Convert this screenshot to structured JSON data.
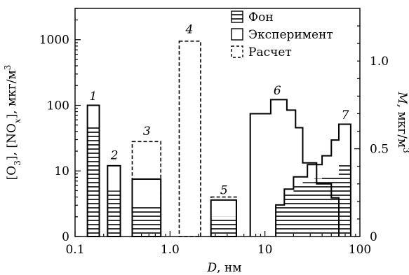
{
  "chart_data": {
    "type": "bar",
    "x_axis": {
      "label": "D, нм",
      "scale": "log",
      "range": [
        0.1,
        100
      ],
      "ticks": [
        {
          "value": 0.1,
          "label": "0.1"
        },
        {
          "value": 1,
          "label": "1.0"
        },
        {
          "value": 10,
          "label": "10"
        },
        {
          "value": 100,
          "label": "100"
        }
      ]
    },
    "y_left": {
      "label": "[O3], [NOx], мкг/м3",
      "label_parts": {
        "pre": "[O",
        "sub1": "3",
        "mid": "], [NO",
        "sub2": "x",
        "post": "], мкг/м",
        "sup": "3"
      },
      "scale": "log",
      "range": [
        1,
        3000
      ],
      "ticks": [
        {
          "value": 1,
          "label": "0"
        },
        {
          "value": 10,
          "label": "10"
        },
        {
          "value": 100,
          "label": "100"
        },
        {
          "value": 1000,
          "label": "1000"
        }
      ]
    },
    "y_right": {
      "label": "M, мкг/м3",
      "label_parts": {
        "var": "M",
        "unit": ", мкг/м",
        "sup": "3"
      },
      "scale": "linear",
      "range": [
        0,
        1.3
      ],
      "ticks": [
        {
          "value": 0,
          "label": "0"
        },
        {
          "value": 0.5,
          "label": "0.5"
        },
        {
          "value": 1.0,
          "label": "1.0"
        }
      ]
    },
    "legend": {
      "position": "top-right",
      "entries": [
        {
          "key": "background",
          "label": "Фон"
        },
        {
          "key": "experiment",
          "label": "Эксперимент"
        },
        {
          "key": "calculation",
          "label": "Расчет"
        }
      ]
    },
    "series": [
      {
        "label": "1",
        "axis": "left",
        "x_range": [
          0.135,
          0.18
        ],
        "experiment": 100,
        "background": 50
      },
      {
        "label": "2",
        "axis": "left",
        "x_range": [
          0.22,
          0.3
        ],
        "experiment": 12,
        "background": 5
      },
      {
        "label": "3",
        "axis": "left",
        "x_range": [
          0.4,
          0.8
        ],
        "experiment": 7.5,
        "background": 3,
        "calculation": 28
      },
      {
        "label": "4",
        "axis": "left",
        "x_range": [
          1.25,
          2.1
        ],
        "calculation": 950
      },
      {
        "label": "5",
        "axis": "left",
        "x_range": [
          2.7,
          5
        ],
        "experiment": 3.6,
        "background": 2,
        "calculation": 4
      },
      {
        "label": "6",
        "axis": "right",
        "experiment_steps": [
          [
            7,
            0.7
          ],
          [
            11.5,
            0.78
          ],
          [
            17,
            0.72
          ],
          [
            21,
            0.62
          ],
          [
            25,
            0.42
          ],
          [
            35,
            0.3
          ],
          [
            50,
            0.22
          ],
          [
            60,
            0.22
          ]
        ],
        "experiment_steps_end": 60,
        "background_steps": [
          [
            13,
            0.18
          ],
          [
            16,
            0.24
          ],
          [
            20,
            0.3
          ],
          [
            25,
            0.31
          ],
          [
            33,
            0.33
          ],
          [
            40,
            0.35
          ],
          [
            60,
            0.42
          ],
          [
            80,
            0.42
          ]
        ],
        "background_steps_end": 80
      },
      {
        "label": "7",
        "axis": "right",
        "experiment_steps": [
          [
            13,
            0.18
          ],
          [
            16,
            0.27
          ],
          [
            20,
            0.34
          ],
          [
            28,
            0.41
          ],
          [
            40,
            0.46
          ],
          [
            50,
            0.55
          ],
          [
            60,
            0.64
          ],
          [
            80,
            0.64
          ]
        ],
        "experiment_steps_end": 80
      }
    ],
    "group_labels": [
      {
        "text": "1",
        "x": 0.155,
        "axis": "left",
        "y": 120
      },
      {
        "text": "2",
        "x": 0.26,
        "axis": "left",
        "y": 15
      },
      {
        "text": "3",
        "x": 0.57,
        "axis": "left",
        "y": 35
      },
      {
        "text": "4",
        "x": 1.6,
        "axis": "left",
        "y": 1250
      },
      {
        "text": "5",
        "x": 3.7,
        "axis": "left",
        "y": 4.4
      },
      {
        "text": "6",
        "axis": "right",
        "x": 13.5,
        "y": 0.81
      },
      {
        "text": "7",
        "axis": "right",
        "x": 70,
        "y": 0.67
      }
    ],
    "grid": false
  }
}
